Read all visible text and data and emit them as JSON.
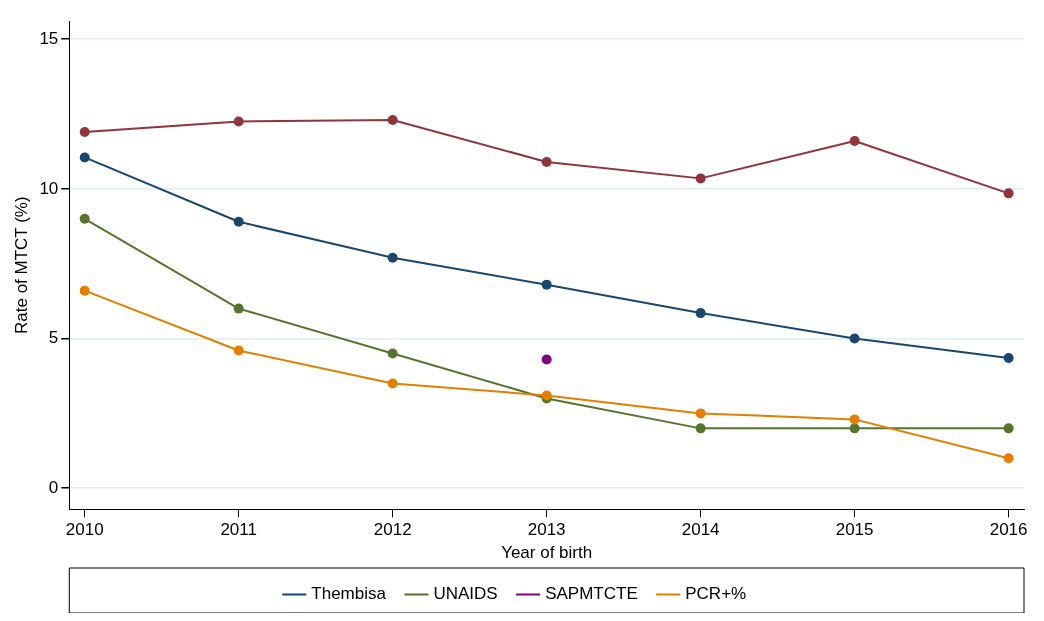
{
  "chart_data": {
    "type": "line",
    "xlabel": "Year of birth",
    "ylabel": "Rate of MTCT (%)",
    "x": [
      2010,
      2011,
      2012,
      2013,
      2014,
      2015,
      2016
    ],
    "xlim": [
      2009.9,
      2016.1
    ],
    "xticks": [
      2010,
      2011,
      2012,
      2013,
      2014,
      2015,
      2016
    ],
    "ylim": [
      -0.7,
      15.6
    ],
    "yticks": [
      0,
      5,
      10,
      15
    ],
    "grid": "y",
    "legend": "bottom",
    "marker": "circle",
    "line_style": "solid",
    "series": [
      {
        "name": "Thembisa",
        "color": "#1a476f",
        "values": [
          11.05,
          8.9,
          7.7,
          6.8,
          5.85,
          5.0,
          4.35
        ]
      },
      {
        "color": "#90353b",
        "values": [
          11.9,
          12.25,
          12.3,
          10.9,
          10.35,
          11.6,
          9.85
        ]
      },
      {
        "name": "UNAIDS",
        "color": "#55752f",
        "values": [
          9,
          6,
          4.5,
          3,
          2,
          2,
          2
        ]
      },
      {
        "name": "SAPMTCTE",
        "type": "scatter",
        "color": "#800080",
        "values": [
          null,
          null,
          null,
          4.3,
          null,
          null,
          null
        ]
      },
      {
        "name": "PCR+%",
        "color": "#e37e00",
        "values": [
          6.6,
          4.6,
          3.5,
          3.1,
          2.5,
          2.3,
          1.0
        ]
      }
    ]
  }
}
